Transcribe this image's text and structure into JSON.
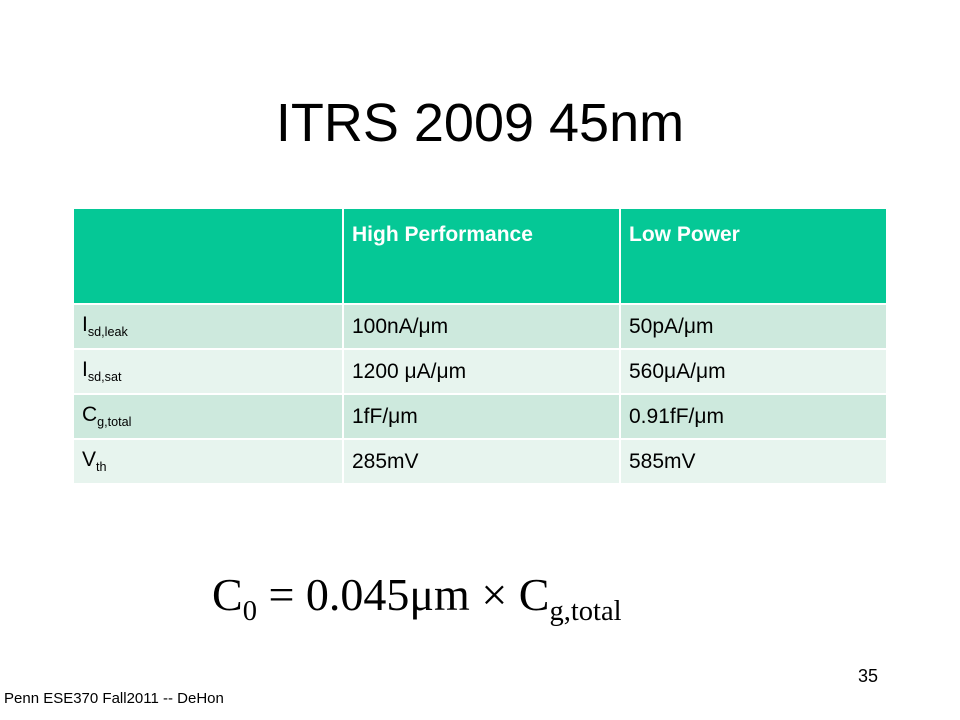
{
  "title": "ITRS 2009 45nm",
  "table": {
    "columns": [
      "High Performance",
      "Low Power"
    ],
    "rows": [
      {
        "label": {
          "main": "I",
          "sub": "sd,leak"
        },
        "cells": [
          "100nA/μm",
          "50pA/μm"
        ]
      },
      {
        "label": {
          "main": "I",
          "sub": "sd,sat"
        },
        "cells": [
          "1200 μA/μm",
          "560μA/μm"
        ]
      },
      {
        "label": {
          "main": "C",
          "sub": "g,total"
        },
        "cells": [
          "1fF/μm",
          "0.91fF/μm"
        ]
      },
      {
        "label": {
          "main": "V",
          "sub": "th"
        },
        "cells": [
          "285mV",
          "585mV"
        ]
      }
    ]
  },
  "formula": {
    "lhs": {
      "main": "C",
      "sub": "0"
    },
    "middle": " = 0.045μm × ",
    "rhs": {
      "main": "C",
      "sub": "g,total"
    }
  },
  "footer": {
    "text": "Penn ESE370 Fall2011 -- DeHon",
    "page": 35
  }
}
